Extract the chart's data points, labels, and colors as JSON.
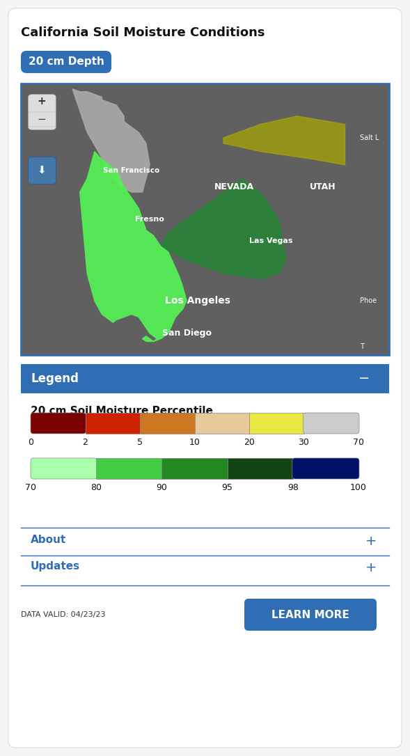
{
  "title": "California Soil Moisture Conditions",
  "depth_label": "20 cm Depth",
  "legend_title": "20 cm Soil Moisture Percentile",
  "legend_header": "Legend",
  "about_label": "About",
  "updates_label": "Updates",
  "learn_more_label": "LEARN MORE",
  "data_valid": "DATA VALID: 04/23/23",
  "map_cities": [
    "San Francisco",
    "Fresno",
    "Las Vegas",
    "Los Angeles",
    "San Diego"
  ],
  "map_states": [
    "NEVADA",
    "UTAH"
  ],
  "map_partial_cities": [
    "Salt L",
    "Phoe",
    "T"
  ],
  "bg_color": "#f5f5f5",
  "card_color": "#ffffff",
  "blue_header_color": "#2f6db5",
  "map_bg_color": "#606060",
  "border_color": "#2f6db5",
  "bar1_colors": [
    "#7b0000",
    "#cc2200",
    "#cc7722",
    "#e8c99a",
    "#e8e840",
    "#cccccc"
  ],
  "bar1_labels": [
    "0",
    "2",
    "5",
    "10",
    "20",
    "30",
    "70"
  ],
  "bar2_colors": [
    "#aaffaa",
    "#44cc44",
    "#228822",
    "#114411",
    "#001166"
  ],
  "bar2_labels": [
    "70",
    "80",
    "90",
    "95",
    "98",
    "100"
  ],
  "title_fontsize": 13,
  "legend_title_fontsize": 11,
  "label_fontsize": 9,
  "section_fontsize": 11,
  "button_fontsize": 11,
  "depth_fontsize": 11,
  "city_fontsize": 9,
  "state_fontsize": 10
}
